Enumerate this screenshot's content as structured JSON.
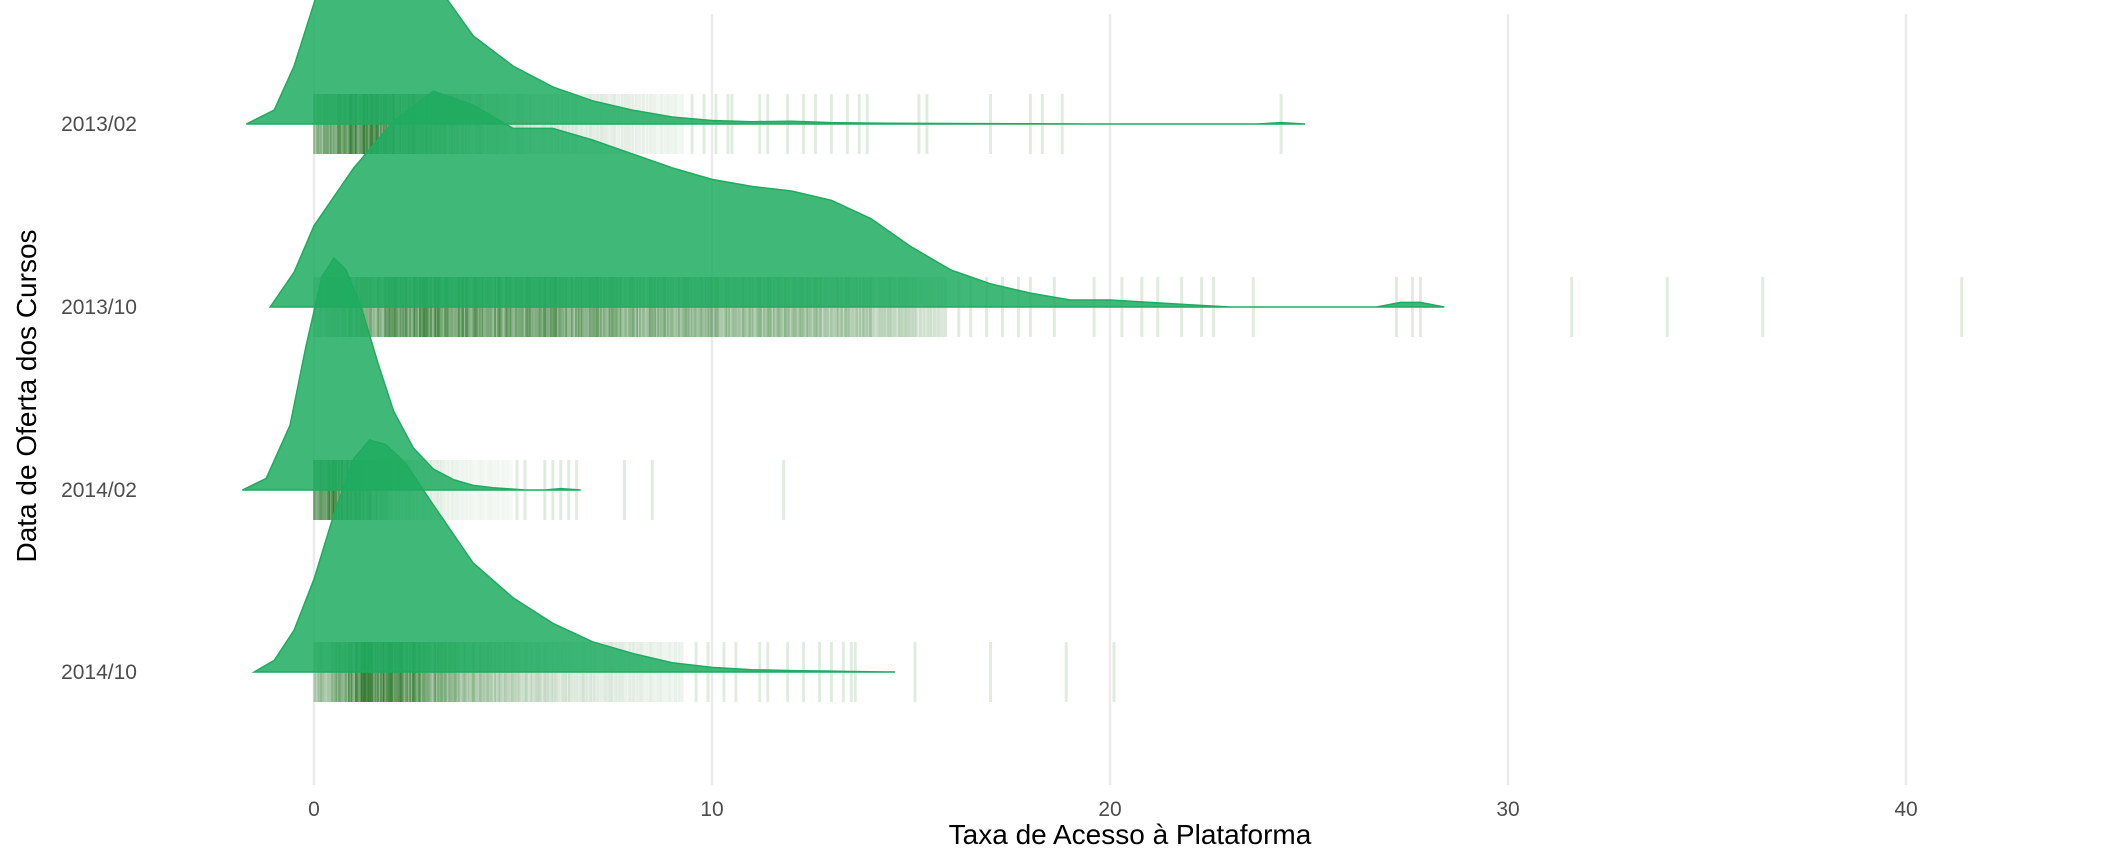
{
  "chart_data": {
    "type": "ridgeline",
    "title": "",
    "xlabel": "Taxa de Acesso à Plataforma",
    "ylabel": "Data de Oferta dos Cursos",
    "xlim": [
      -3.1,
      46
    ],
    "xticks": [
      0,
      10,
      20,
      30,
      40
    ],
    "grid": "vertical major lines",
    "legend": "none",
    "colors": {
      "density_fill": "#1fab60",
      "rug_line": "#1a6b1a",
      "grid": "#ebebeb"
    },
    "categories": [
      "2013/02",
      "2013/10",
      "2014/02",
      "2014/10"
    ],
    "series": [
      {
        "name": "2013/02",
        "density": {
          "x": [
            -1.7,
            -1.0,
            -0.5,
            0.0,
            0.5,
            1.0,
            1.4,
            1.8,
            2.3,
            3.0,
            4.0,
            5.0,
            6.0,
            7.0,
            8.0,
            9.0,
            10.0,
            11.0,
            12.0,
            13.0,
            14.0,
            16.0,
            18.0,
            19.5,
            23.7,
            24.3,
            24.9
          ],
          "y": [
            0.0,
            0.06,
            0.25,
            0.52,
            0.8,
            0.97,
            1.0,
            0.96,
            0.84,
            0.62,
            0.38,
            0.25,
            0.16,
            0.1,
            0.06,
            0.03,
            0.015,
            0.01,
            0.012,
            0.006,
            0.004,
            0.002,
            0.001,
            0.0,
            0.0,
            0.006,
            0.0
          ]
        },
        "rug_dense_max": 9.3,
        "rug": [
          9.5,
          9.8,
          10.1,
          10.4,
          10.5,
          11.2,
          11.4,
          11.9,
          12.3,
          12.6,
          13.0,
          13.4,
          13.7,
          13.9,
          15.2,
          15.4,
          17.0,
          18.0,
          18.3,
          18.8,
          24.3
        ]
      },
      {
        "name": "2013/10",
        "density": {
          "x": [
            -1.1,
            -0.5,
            0.0,
            1.0,
            2.0,
            3.0,
            4.0,
            5.0,
            6.0,
            7.0,
            8.0,
            9.0,
            10.0,
            11.0,
            12.0,
            13.0,
            14.0,
            15.0,
            16.0,
            17.0,
            18.0,
            19.0,
            20.0,
            21.0,
            22.0,
            23.0,
            26.7,
            27.3,
            27.8,
            28.4
          ],
          "y": [
            0.0,
            0.15,
            0.35,
            0.6,
            0.8,
            0.93,
            0.87,
            0.77,
            0.77,
            0.72,
            0.66,
            0.6,
            0.55,
            0.52,
            0.5,
            0.46,
            0.38,
            0.26,
            0.16,
            0.1,
            0.06,
            0.03,
            0.03,
            0.02,
            0.01,
            0.0,
            0.0,
            0.02,
            0.02,
            0.0
          ]
        },
        "rug_dense_max": 15.9,
        "rug": [
          16.2,
          16.5,
          16.9,
          17.3,
          17.7,
          18.0,
          18.6,
          19.6,
          20.3,
          20.8,
          21.2,
          21.8,
          22.3,
          22.6,
          23.6,
          27.2,
          27.6,
          27.8,
          31.6,
          34.0,
          36.4,
          41.4
        ]
      },
      {
        "name": "2014/02",
        "density": {
          "x": [
            -1.8,
            -1.2,
            -0.6,
            -0.2,
            0.2,
            0.5,
            0.8,
            1.2,
            1.6,
            2.0,
            2.5,
            3.0,
            3.5,
            4.0,
            4.5,
            5.0,
            5.3,
            5.8,
            6.2,
            6.7
          ],
          "y": [
            0.0,
            0.05,
            0.28,
            0.62,
            0.92,
            1.0,
            0.95,
            0.78,
            0.55,
            0.34,
            0.18,
            0.09,
            0.045,
            0.02,
            0.01,
            0.004,
            0.0,
            0.0,
            0.006,
            0.0
          ]
        },
        "rug_dense_max": 5.0,
        "rug": [
          5.1,
          5.3,
          5.8,
          6.0,
          6.2,
          6.4,
          6.6,
          7.8,
          8.5,
          11.8
        ]
      },
      {
        "name": "2014/10",
        "density": {
          "x": [
            -1.5,
            -1.0,
            -0.5,
            0.0,
            0.5,
            1.0,
            1.4,
            1.8,
            2.3,
            3.0,
            4.0,
            5.0,
            6.0,
            7.0,
            8.0,
            9.0,
            10.0,
            11.0,
            12.0,
            13.0,
            13.5,
            14.6
          ],
          "y": [
            0.0,
            0.05,
            0.18,
            0.4,
            0.68,
            0.92,
            1.0,
            0.98,
            0.9,
            0.72,
            0.47,
            0.32,
            0.21,
            0.13,
            0.08,
            0.04,
            0.02,
            0.01,
            0.006,
            0.004,
            0.002,
            0.0
          ]
        },
        "rug_dense_max": 9.3,
        "rug": [
          9.6,
          9.9,
          10.3,
          10.6,
          11.2,
          11.4,
          11.9,
          12.3,
          12.7,
          13.0,
          13.3,
          13.5,
          13.6,
          15.1,
          17.0,
          18.9,
          20.1
        ]
      }
    ]
  }
}
